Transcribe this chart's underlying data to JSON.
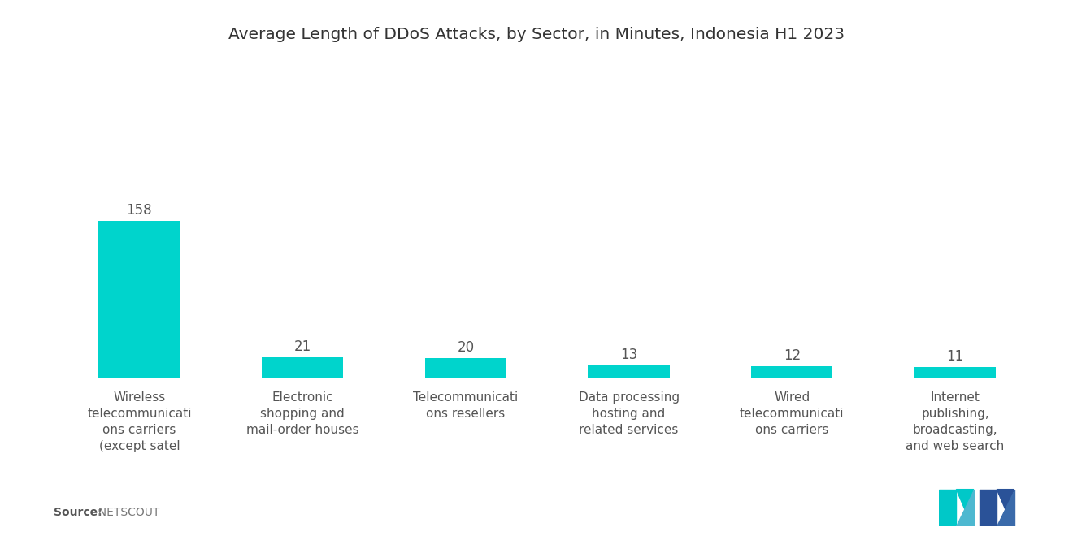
{
  "title": "Average Length of DDoS Attacks, by Sector, in Minutes, Indonesia H1 2023",
  "categories": [
    "Wireless\ntelecommunicati\nons carriers\n(except satel",
    "Electronic\nshopping and\nmail-order houses",
    "Telecommunicati\nons resellers",
    "Data processing\nhosting and\nrelated services",
    "Wired\ntelecommunicati\nons carriers",
    "Internet\npublishing,\nbroadcasting,\nand web search"
  ],
  "values": [
    158,
    21,
    20,
    13,
    12,
    11
  ],
  "bar_color": "#00D4CC",
  "background_color": "#ffffff",
  "title_fontsize": 14.5,
  "label_fontsize": 11,
  "value_fontsize": 12,
  "source_label": "Source:",
  "source_value": "  NETSCOUT",
  "ylim": [
    0,
    260
  ]
}
